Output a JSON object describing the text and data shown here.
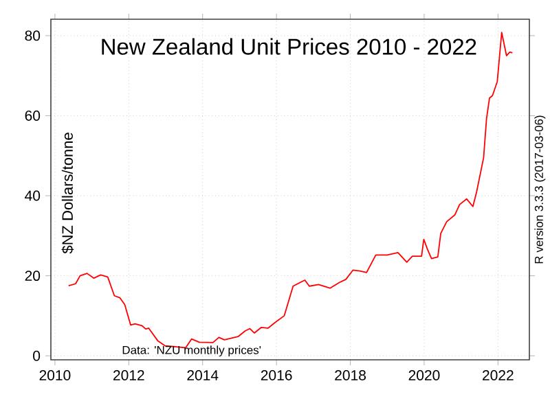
{
  "chart_data": {
    "type": "line",
    "title": "New Zealand Unit Prices 2010 - 2022",
    "ylabel": "$NZ Dollars/tonne",
    "annotations": [
      "Data: 'NZU monthly prices'",
      "R version 3.3.3 (2017-03-06)"
    ],
    "series": [
      {
        "color": "#ff0000",
        "x": [
          2010.37,
          2010.56,
          2010.68,
          2010.87,
          2011.05,
          2011.24,
          2011.43,
          2011.61,
          2011.76,
          2011.89,
          2012.05,
          2012.17,
          2012.36,
          2012.46,
          2012.54,
          2012.79,
          2012.98,
          2013.35,
          2013.54,
          2013.7,
          2013.91,
          2014.28,
          2014.44,
          2014.59,
          2014.96,
          2015.15,
          2015.28,
          2015.4,
          2015.59,
          2015.77,
          2015.96,
          2016.21,
          2016.45,
          2016.7,
          2016.77,
          2016.89,
          2017.14,
          2017.45,
          2017.7,
          2017.88,
          2018.07,
          2018.26,
          2018.44,
          2018.69,
          2019.0,
          2019.29,
          2019.53,
          2019.68,
          2019.93,
          2019.99,
          2020.09,
          2020.2,
          2020.37,
          2020.45,
          2020.61,
          2020.83,
          2020.96,
          2021.15,
          2021.32,
          2021.42,
          2021.61,
          2021.69,
          2021.77,
          2021.85,
          2021.98,
          2022.1,
          2022.23,
          2022.32,
          2022.39
        ],
        "values": [
          17.5,
          18,
          20,
          20.6,
          19.4,
          20.2,
          19.7,
          15,
          14.5,
          12.8,
          7.7,
          8,
          7.5,
          6.7,
          6.9,
          3.7,
          2.5,
          2.2,
          2.0,
          4.2,
          3.4,
          3.3,
          4.6,
          4.0,
          4.8,
          6.2,
          6.8,
          5.7,
          7.1,
          6.9,
          8.3,
          10,
          17.4,
          18.6,
          18.9,
          17.4,
          17.8,
          16.9,
          18.3,
          19.1,
          21.4,
          21.2,
          20.8,
          25.2,
          25.2,
          25.8,
          23.4,
          24.9,
          24.9,
          29.1,
          26.6,
          24.3,
          24.7,
          30.6,
          33.5,
          35.2,
          37.8,
          39.2,
          37.3,
          40.9,
          49.5,
          59.3,
          64.4,
          65,
          68.5,
          80.8,
          75,
          75.9,
          75.7
        ]
      }
    ],
    "xlim": [
      2009.89,
      2022.85
    ],
    "ylim": [
      -1,
      84.1
    ],
    "xticks": [
      2010,
      2012,
      2014,
      2016,
      2018,
      2020,
      2022
    ],
    "yticks": [
      0,
      20,
      40,
      60,
      80
    ],
    "grid": true
  }
}
